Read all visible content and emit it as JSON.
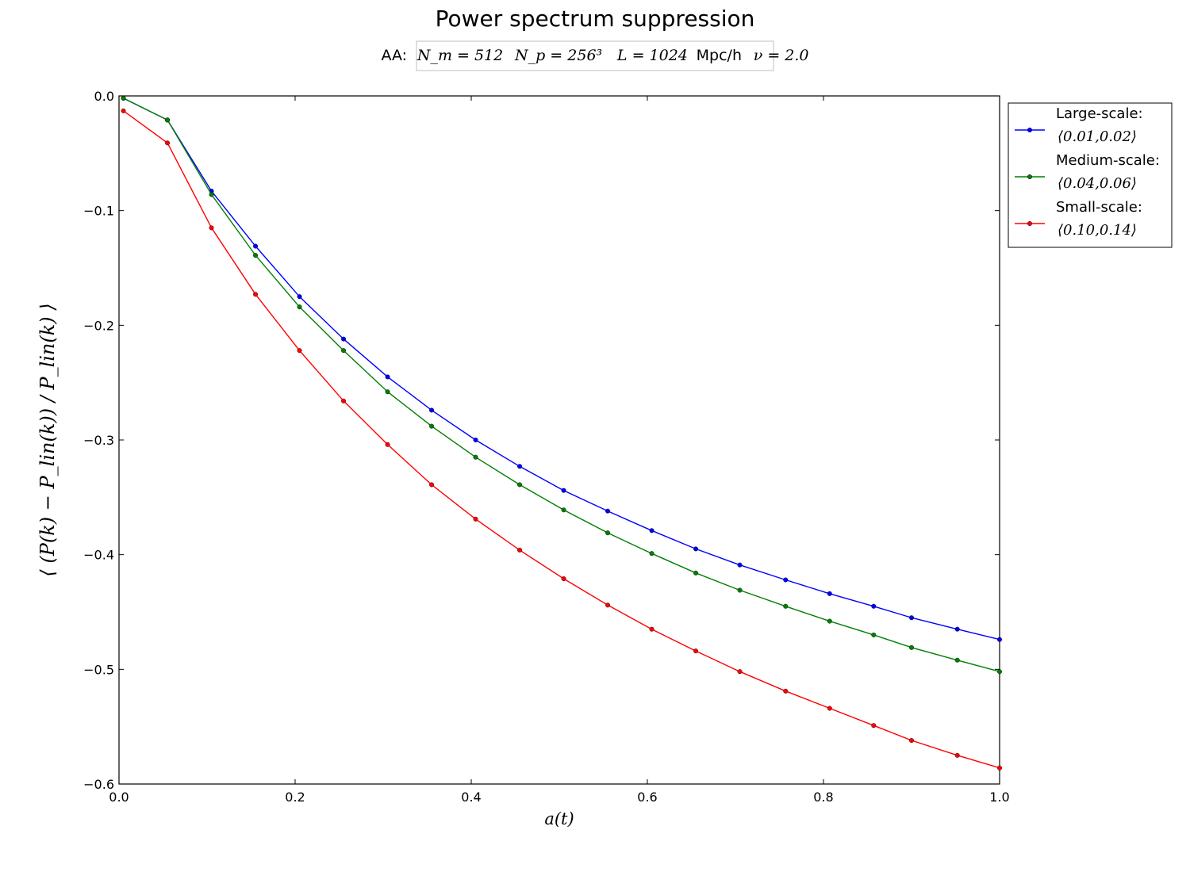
{
  "chart_data": {
    "type": "line",
    "title": "Power spectrum suppression",
    "subtitle": {
      "prefix": "AA:",
      "n_mesh": "N_m = 512",
      "n_particles": "N_p = 256³",
      "box_size": "L = 1024",
      "box_unit": "Mpc/h",
      "nu": "ν = 2.0"
    },
    "xlabel": "a(t)",
    "ylabel": "⟨ (P(k) − P_lin(k)) / P_lin(k) ⟩",
    "xlim": [
      0.0,
      1.0
    ],
    "ylim": [
      -0.6,
      0.0
    ],
    "xticks": [
      0.0,
      0.2,
      0.4,
      0.6,
      0.8,
      1.0
    ],
    "xtick_labels": [
      "0.0",
      "0.2",
      "0.4",
      "0.6",
      "0.8",
      "1.0"
    ],
    "yticks": [
      0.0,
      -0.1,
      -0.2,
      -0.3,
      -0.4,
      -0.5,
      -0.6
    ],
    "ytick_labels": [
      "0.0",
      "−0.1",
      "−0.2",
      "−0.3",
      "−0.4",
      "−0.5",
      "−0.6"
    ],
    "grid": false,
    "legend_position": "outside-right-top",
    "x": [
      0.005,
      0.055,
      0.105,
      0.155,
      0.205,
      0.255,
      0.305,
      0.355,
      0.405,
      0.455,
      0.505,
      0.555,
      0.605,
      0.655,
      0.705,
      0.757,
      0.807,
      0.857,
      0.9,
      0.952,
      1.0
    ],
    "series": [
      {
        "name": "Large-scale:",
        "range": "⟨0.01,0.02⟩",
        "color": "#0000ff",
        "values": [
          -0.002,
          -0.021,
          -0.083,
          -0.131,
          -0.175,
          -0.212,
          -0.245,
          -0.274,
          -0.3,
          -0.323,
          -0.344,
          -0.362,
          -0.379,
          -0.395,
          -0.409,
          -0.422,
          -0.434,
          -0.445,
          -0.455,
          -0.465,
          -0.474
        ]
      },
      {
        "name": "Medium-scale:",
        "range": "⟨0.04,0.06⟩",
        "color": "#007f00",
        "values": [
          -0.002,
          -0.021,
          -0.086,
          -0.139,
          -0.184,
          -0.222,
          -0.258,
          -0.288,
          -0.315,
          -0.339,
          -0.361,
          -0.381,
          -0.399,
          -0.416,
          -0.431,
          -0.445,
          -0.458,
          -0.47,
          -0.481,
          -0.492,
          -0.502
        ]
      },
      {
        "name": "Small-scale:",
        "range": "⟨0.10,0.14⟩",
        "color": "#ff0000",
        "values": [
          -0.013,
          -0.041,
          -0.115,
          -0.173,
          -0.222,
          -0.266,
          -0.304,
          -0.339,
          -0.369,
          -0.396,
          -0.421,
          -0.444,
          -0.465,
          -0.484,
          -0.502,
          -0.519,
          -0.534,
          -0.549,
          -0.562,
          -0.575,
          -0.586
        ]
      }
    ]
  }
}
